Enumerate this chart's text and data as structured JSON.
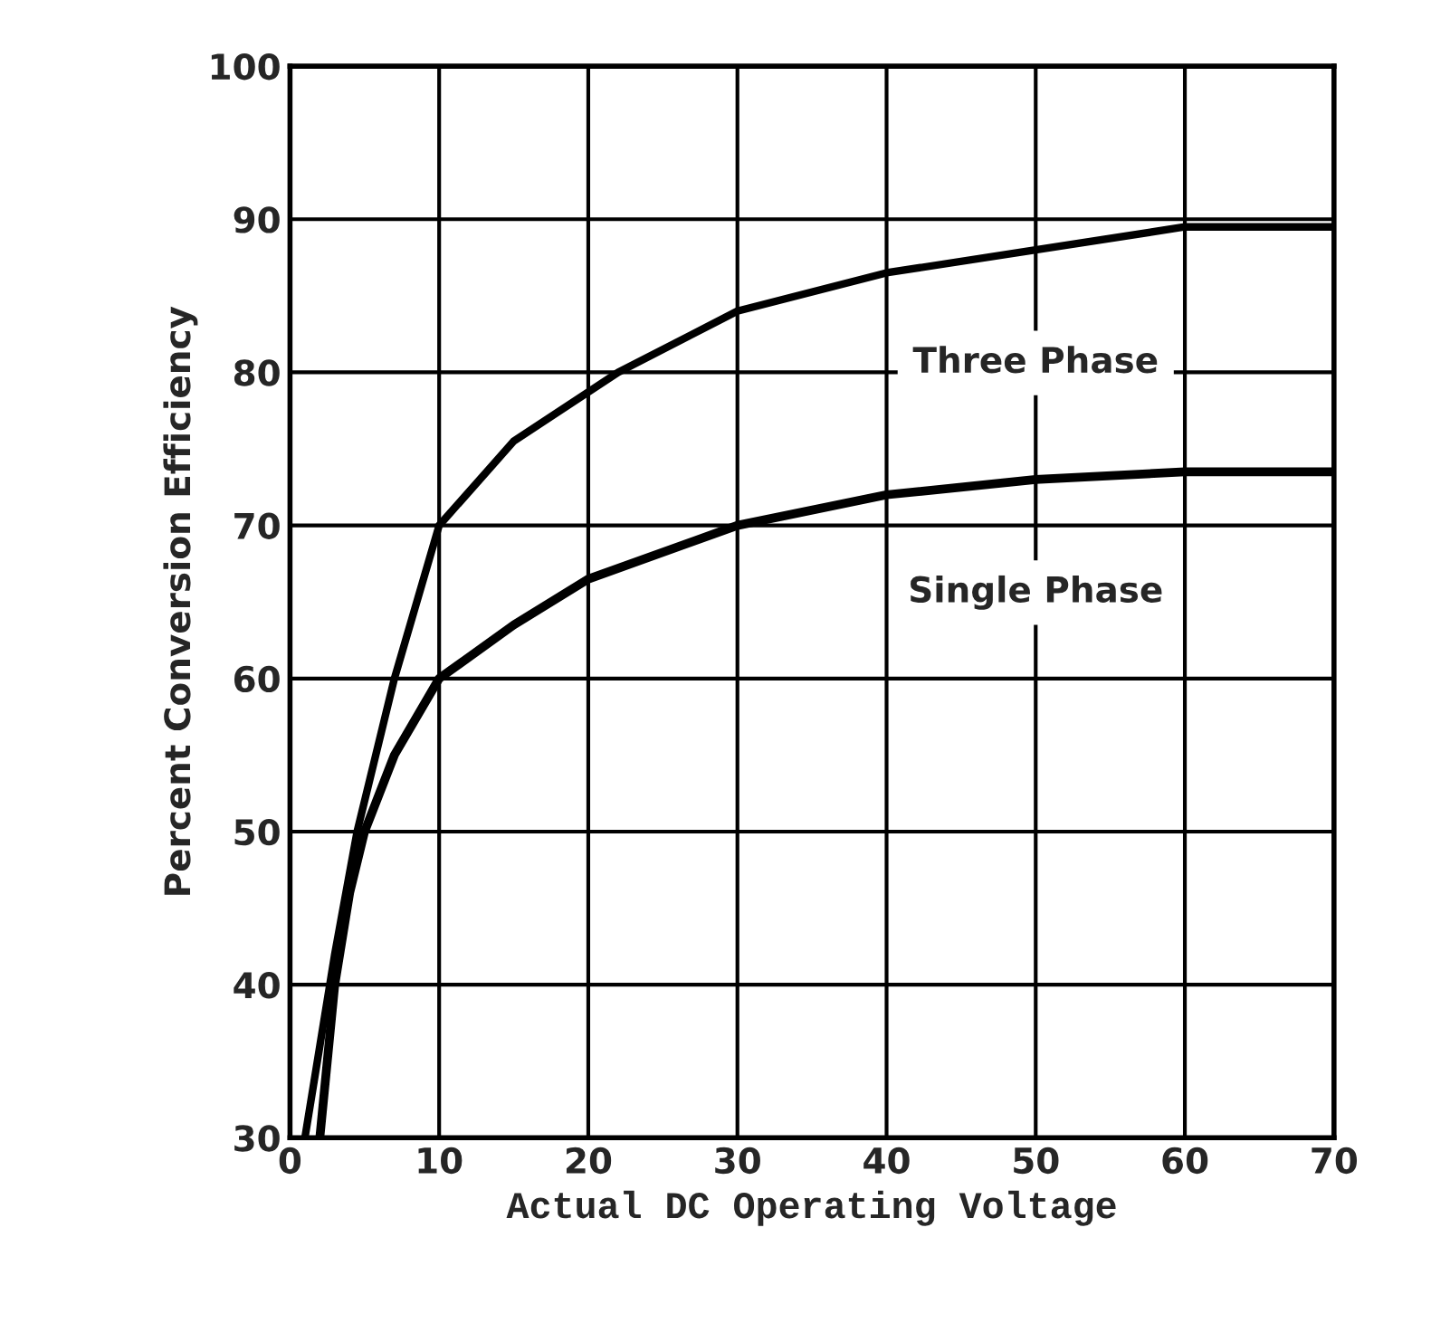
{
  "chart_data": {
    "type": "line",
    "xlabel": "Actual DC Operating Voltage",
    "ylabel": "Percent Conversion Efficiency",
    "xlim": [
      0,
      70
    ],
    "ylim": [
      30,
      100
    ],
    "xticks": [
      0,
      10,
      20,
      30,
      40,
      50,
      60,
      70
    ],
    "yticks": [
      30,
      40,
      50,
      60,
      70,
      80,
      90,
      100
    ],
    "grid": true,
    "series": [
      {
        "name": "Three Phase",
        "color": "#000000",
        "x": [
          1,
          2,
          3,
          4.5,
          7,
          10,
          15,
          22,
          30,
          40,
          50,
          60,
          70
        ],
        "values": [
          30,
          36,
          42,
          50,
          60,
          70,
          75.5,
          80,
          84,
          86.5,
          88,
          89.5,
          89.5
        ]
      },
      {
        "name": "Single Phase",
        "color": "#000000",
        "x": [
          2,
          3,
          4,
          5,
          7,
          10,
          15,
          20,
          30,
          40,
          50,
          60,
          70
        ],
        "values": [
          30,
          40,
          46,
          50,
          55,
          60,
          63.5,
          66.5,
          70,
          72,
          73,
          73.5,
          73.5
        ]
      }
    ]
  }
}
